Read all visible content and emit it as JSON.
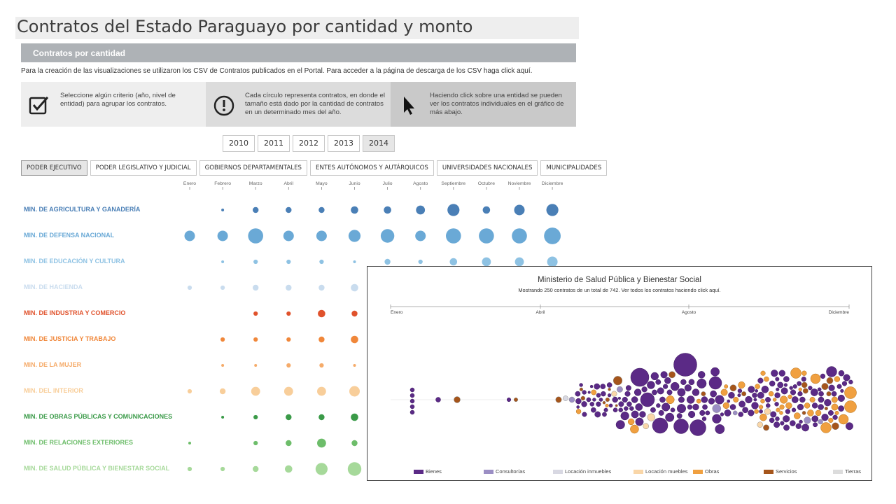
{
  "page": {
    "title": "Contratos del Estado Paraguayo por cantidad y monto",
    "section_title": "Contratos por cantidad",
    "intro": "Para la creación de las visualizaciones se utilizaron los CSV de Contratos publicados en el Portal. Para acceder a la página de descarga de los CSV haga click aquí."
  },
  "info": [
    {
      "icon": "checkbox-icon",
      "text": "Seleccione algún criterio (año, nivel de entidad) para agrupar los contratos."
    },
    {
      "icon": "exclamation-icon",
      "text": "Cada círculo representa contratos, en donde el tamaño está dado por la cantidad de contratos en un determinado mes del año."
    },
    {
      "icon": "cursor-icon",
      "text": "Haciendo click sobre una entidad se pueden ver los contratos individuales en el gráfico de más abajo."
    }
  ],
  "years": [
    "2010",
    "2011",
    "2012",
    "2013",
    "2014"
  ],
  "selected_year": "2014",
  "tabs": [
    "PODER EJECUTIVO",
    "PODER LEGISLATIVO Y JUDICIAL",
    "GOBIERNOS DEPARTAMENTALES",
    "ENTES AUTÓNOMOS Y AUTÁRQUICOS",
    "UNIVERSIDADES NACIONALES",
    "MUNICIPALIDADES"
  ],
  "chart_data": [
    {
      "type": "scatter",
      "title": "Contratos por cantidad",
      "months": [
        "Enero",
        "Febrero",
        "Marzo",
        "Abril",
        "Mayo",
        "Junio",
        "Julio",
        "Agosto",
        "Septiembre",
        "Octubre",
        "Noviembre",
        "Diciembre"
      ],
      "size_meaning": "cantidad de contratos (tamaño relativo 0-10)",
      "entities": [
        {
          "name": "MIN. DE AGRICULTURA Y GANADERÍA",
          "color": "#4a7fb6",
          "values": [
            0,
            1,
            3,
            3,
            3,
            4,
            4,
            5,
            7,
            4,
            6,
            7
          ]
        },
        {
          "name": "MIN. DE DEFENSA NACIONAL",
          "color": "#6aa9d6",
          "values": [
            6,
            6,
            9,
            6,
            6,
            7,
            8,
            6,
            9,
            9,
            9,
            10
          ]
        },
        {
          "name": "MIN. DE EDUCACIÓN Y CULTURA",
          "color": "#8ec2e3",
          "values": [
            0,
            1,
            2,
            2,
            2,
            1,
            3,
            2,
            4,
            5,
            5,
            6
          ]
        },
        {
          "name": "MIN. DE HACIENDA",
          "color": "#c9dcee",
          "values": [
            2,
            2,
            3,
            3,
            3,
            4,
            null,
            null,
            null,
            null,
            null,
            null
          ]
        },
        {
          "name": "MIN. DE INDUSTRIA Y COMERCIO",
          "color": "#e0522c",
          "values": [
            0,
            0,
            2,
            2,
            4,
            3,
            null,
            null,
            null,
            null,
            null,
            null
          ]
        },
        {
          "name": "MIN. DE JUSTICIA Y TRABAJO",
          "color": "#f0873a",
          "values": [
            0,
            2,
            2,
            2,
            3,
            4,
            null,
            null,
            null,
            null,
            null,
            null
          ]
        },
        {
          "name": "MIN. DE LA MUJER",
          "color": "#f5ab6a",
          "values": [
            0,
            1,
            1,
            2,
            2,
            1,
            null,
            null,
            null,
            null,
            null,
            null
          ]
        },
        {
          "name": "MIN. DEL INTERIOR",
          "color": "#f8ce9a",
          "values": [
            2,
            3,
            5,
            5,
            5,
            6,
            null,
            null,
            null,
            null,
            null,
            null
          ]
        },
        {
          "name": "MIN. DE OBRAS PÚBLICAS Y COMUNICACIONES",
          "color": "#3a9a48",
          "values": [
            0,
            1,
            2,
            3,
            3,
            4,
            null,
            null,
            null,
            null,
            null,
            null
          ]
        },
        {
          "name": "MIN. DE RELACIONES EXTERIORES",
          "color": "#6dbd6a",
          "values": [
            1,
            0,
            2,
            3,
            5,
            3,
            null,
            null,
            null,
            null,
            null,
            null
          ]
        },
        {
          "name": "MIN. DE SALUD PÚBLICA Y BIENESTAR SOCIAL",
          "color": "#a6d99a",
          "values": [
            2,
            2,
            3,
            4,
            7,
            8,
            null,
            null,
            null,
            null,
            null,
            null
          ]
        }
      ]
    },
    {
      "type": "scatter",
      "title": "Ministerio de Salud Pública y Bienestar Social",
      "subtitle": "Mostrando 250 contratos de un total de 742. Ver todos los contratos haciendo click aquí.",
      "axis_ticks": [
        "Enero",
        "Abril",
        "Agosto",
        "Diciembre"
      ],
      "legend": [
        "Bienes",
        "Consultorías",
        "Locación inmuebles",
        "Locación muebles",
        "Obras",
        "Servicios",
        "Tierras"
      ],
      "colors": {
        "Bienes": "#5b2a86",
        "Consultorías": "#9b8ec4",
        "Locación inmuebles": "#d8d8e2",
        "Locación muebles": "#f9d6a8",
        "Obras": "#f0a040",
        "Servicios": "#a5551b",
        "Tierras": "#dcdcdc"
      },
      "contracts_shown": 250,
      "contracts_total": 742
    }
  ]
}
